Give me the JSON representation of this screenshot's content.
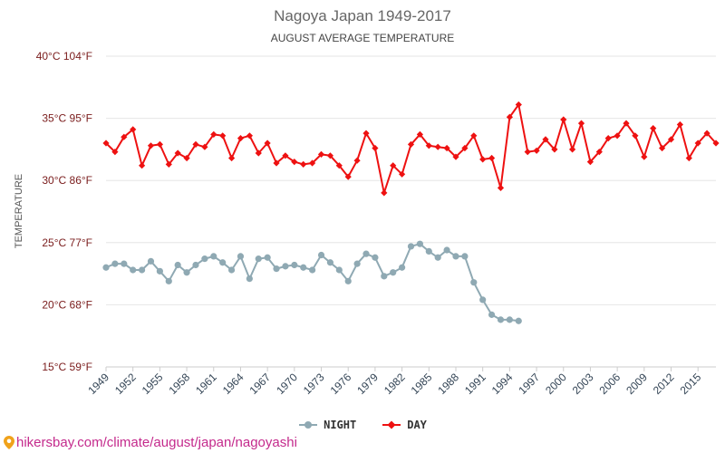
{
  "credit": "hikersbay.com/climate/august/japan/nagoyashi",
  "chart_data": {
    "type": "line",
    "title": "Nagoya Japan 1949-2017",
    "subtitle": "AUGUST AVERAGE TEMPERATURE",
    "ylabel": "TEMPERATURE",
    "ylim": [
      15,
      40
    ],
    "xlim": [
      1949,
      2017
    ],
    "yticks": [
      {
        "value": 15,
        "label": "15°C 59°F"
      },
      {
        "value": 20,
        "label": "20°C 68°F"
      },
      {
        "value": 25,
        "label": "25°C 77°F"
      },
      {
        "value": 30,
        "label": "30°C 86°F"
      },
      {
        "value": 35,
        "label": "35°C 95°F"
      },
      {
        "value": 40,
        "label": "40°C 104°F"
      }
    ],
    "xticks": [
      1949,
      1952,
      1955,
      1958,
      1961,
      1964,
      1967,
      1970,
      1973,
      1976,
      1979,
      1982,
      1985,
      1988,
      1991,
      1994,
      1997,
      2000,
      2003,
      2006,
      2009,
      2012,
      2015
    ],
    "series": [
      {
        "name": "NIGHT",
        "color": "#8fa9b3",
        "marker": "circle",
        "start_year": 1949,
        "values": [
          23.0,
          23.3,
          23.3,
          22.8,
          22.8,
          23.5,
          22.7,
          21.9,
          23.2,
          22.6,
          23.2,
          23.7,
          23.9,
          23.4,
          22.8,
          23.9,
          22.1,
          23.7,
          23.8,
          22.9,
          23.1,
          23.2,
          23.0,
          22.8,
          24.0,
          23.4,
          22.8,
          21.9,
          23.3,
          24.1,
          23.8,
          22.3,
          22.6,
          23.0,
          24.7,
          24.9,
          24.3,
          23.8,
          24.4,
          23.9,
          23.9,
          21.8,
          20.4,
          19.2,
          18.8,
          18.8,
          18.7
        ]
      },
      {
        "name": "DAY",
        "color": "#ee1111",
        "marker": "diamond",
        "start_year": 1949,
        "values": [
          33.0,
          32.3,
          33.5,
          34.1,
          31.2,
          32.8,
          32.9,
          31.3,
          32.2,
          31.8,
          32.9,
          32.7,
          33.7,
          33.6,
          31.8,
          33.4,
          33.6,
          32.2,
          33.0,
          31.4,
          32.0,
          31.5,
          31.3,
          31.4,
          32.1,
          32.0,
          31.2,
          30.3,
          31.6,
          33.8,
          32.6,
          29.0,
          31.2,
          30.5,
          32.9,
          33.7,
          32.8,
          32.7,
          32.6,
          31.9,
          32.6,
          33.6,
          31.7,
          31.8,
          29.4,
          35.1,
          36.1,
          32.3,
          32.4,
          33.3,
          32.5,
          34.9,
          32.5,
          34.6,
          31.5,
          32.3,
          33.4,
          33.6,
          34.6,
          33.6,
          31.9,
          34.2,
          32.6,
          33.3,
          34.5,
          31.8,
          33.0,
          33.8,
          33.0
        ]
      }
    ],
    "legend": "bottom-center"
  }
}
